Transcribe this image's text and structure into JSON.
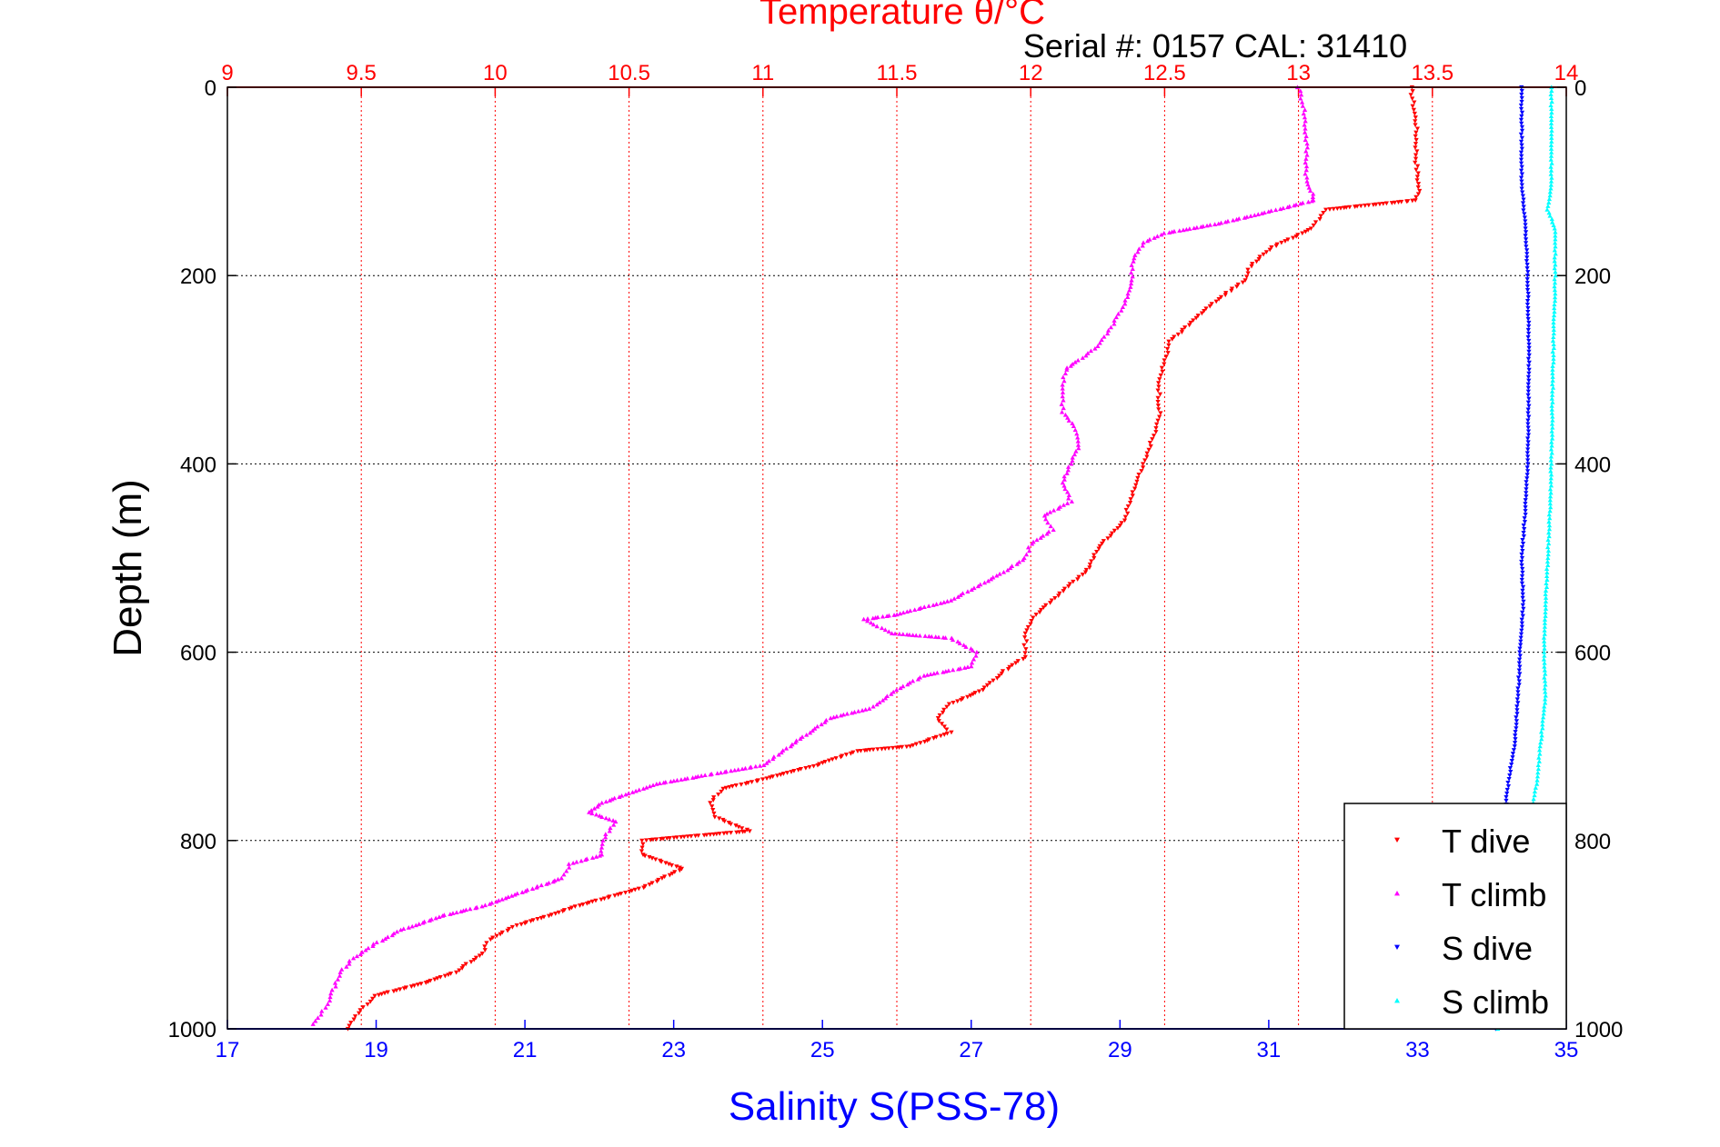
{
  "chart_data": {
    "type": "scatter",
    "title": "Temperature θ/°C",
    "subtitle": "Serial #: 0157  CAL: 31410",
    "ylabel": "Depth (m)",
    "xlabel": "Salinity S(PSS-78)",
    "ylim": [
      0,
      1000
    ],
    "y_reversed": true,
    "y_ticks": [
      0,
      200,
      400,
      600,
      800,
      1000
    ],
    "temp_axis": {
      "range": [
        9,
        14
      ],
      "ticks": [
        "9",
        "9.5",
        "10",
        "10.5",
        "11",
        "11.5",
        "12",
        "12.5",
        "13",
        "13.5",
        "14"
      ],
      "color": "#ff0000",
      "position": "top"
    },
    "sal_axis": {
      "range": [
        17,
        35
      ],
      "ticks": [
        "17",
        "19",
        "21",
        "23",
        "25",
        "27",
        "29",
        "31",
        "33",
        "35"
      ],
      "color": "#0000ff",
      "position": "bottom"
    },
    "grid": true,
    "legend_position": "bottom-right",
    "series": [
      {
        "name": "T dive",
        "axis": "temperature",
        "marker": "triangle-down",
        "color": "#ff0000",
        "points": [
          [
            13.42,
            0
          ],
          [
            13.44,
            40
          ],
          [
            13.44,
            80
          ],
          [
            13.45,
            110
          ],
          [
            13.44,
            120
          ],
          [
            13.1,
            130
          ],
          [
            13.05,
            150
          ],
          [
            12.9,
            170
          ],
          [
            12.82,
            190
          ],
          [
            12.8,
            205
          ],
          [
            12.7,
            225
          ],
          [
            12.6,
            250
          ],
          [
            12.52,
            270
          ],
          [
            12.5,
            290
          ],
          [
            12.48,
            310
          ],
          [
            12.48,
            330
          ],
          [
            12.48,
            350
          ],
          [
            12.46,
            370
          ],
          [
            12.42,
            400
          ],
          [
            12.38,
            430
          ],
          [
            12.35,
            460
          ],
          [
            12.25,
            490
          ],
          [
            12.22,
            510
          ],
          [
            12.1,
            540
          ],
          [
            12.02,
            560
          ],
          [
            11.98,
            580
          ],
          [
            11.98,
            605
          ],
          [
            11.9,
            620
          ],
          [
            11.82,
            640
          ],
          [
            11.7,
            655
          ],
          [
            11.65,
            670
          ],
          [
            11.7,
            685
          ],
          [
            11.55,
            700
          ],
          [
            11.35,
            705
          ],
          [
            11.2,
            720
          ],
          [
            11.0,
            735
          ],
          [
            10.85,
            745
          ],
          [
            10.8,
            760
          ],
          [
            10.82,
            775
          ],
          [
            10.95,
            790
          ],
          [
            10.55,
            800
          ],
          [
            10.55,
            815
          ],
          [
            10.7,
            830
          ],
          [
            10.55,
            850
          ],
          [
            10.3,
            870
          ],
          [
            10.2,
            880
          ],
          [
            10.08,
            890
          ],
          [
            9.98,
            905
          ],
          [
            9.95,
            920
          ],
          [
            9.85,
            940
          ],
          [
            9.75,
            950
          ],
          [
            9.55,
            965
          ],
          [
            9.5,
            980
          ],
          [
            9.47,
            990
          ],
          [
            9.45,
            1000
          ]
        ]
      },
      {
        "name": "T climb",
        "axis": "temperature",
        "marker": "triangle-up",
        "color": "#ff00ff",
        "points": [
          [
            13.0,
            0
          ],
          [
            13.02,
            20
          ],
          [
            13.03,
            60
          ],
          [
            13.03,
            100
          ],
          [
            13.06,
            120
          ],
          [
            12.85,
            135
          ],
          [
            12.7,
            145
          ],
          [
            12.5,
            155
          ],
          [
            12.42,
            165
          ],
          [
            12.38,
            185
          ],
          [
            12.38,
            205
          ],
          [
            12.35,
            230
          ],
          [
            12.3,
            255
          ],
          [
            12.25,
            275
          ],
          [
            12.18,
            290
          ],
          [
            12.13,
            300
          ],
          [
            12.12,
            320
          ],
          [
            12.12,
            345
          ],
          [
            12.16,
            360
          ],
          [
            12.18,
            380
          ],
          [
            12.15,
            400
          ],
          [
            12.12,
            420
          ],
          [
            12.15,
            440
          ],
          [
            12.05,
            455
          ],
          [
            12.08,
            470
          ],
          [
            12.0,
            485
          ],
          [
            11.98,
            500
          ],
          [
            11.9,
            515
          ],
          [
            11.8,
            530
          ],
          [
            11.7,
            545
          ],
          [
            11.5,
            560
          ],
          [
            11.38,
            565
          ],
          [
            11.48,
            580
          ],
          [
            11.7,
            585
          ],
          [
            11.8,
            600
          ],
          [
            11.78,
            615
          ],
          [
            11.6,
            625
          ],
          [
            11.5,
            640
          ],
          [
            11.4,
            660
          ],
          [
            11.25,
            670
          ],
          [
            11.15,
            690
          ],
          [
            11.1,
            700
          ],
          [
            11.0,
            720
          ],
          [
            10.8,
            730
          ],
          [
            10.6,
            740
          ],
          [
            10.5,
            750
          ],
          [
            10.4,
            760
          ],
          [
            10.35,
            770
          ],
          [
            10.45,
            780
          ],
          [
            10.4,
            800
          ],
          [
            10.4,
            815
          ],
          [
            10.28,
            825
          ],
          [
            10.25,
            840
          ],
          [
            10.1,
            855
          ],
          [
            9.95,
            870
          ],
          [
            9.8,
            880
          ],
          [
            9.65,
            895
          ],
          [
            9.55,
            910
          ],
          [
            9.47,
            925
          ],
          [
            9.42,
            940
          ],
          [
            9.4,
            955
          ],
          [
            9.38,
            970
          ],
          [
            9.35,
            985
          ],
          [
            9.32,
            995
          ]
        ]
      },
      {
        "name": "S dive",
        "axis": "salinity",
        "marker": "triangle-down",
        "color": "#0000ff",
        "points": [
          [
            34.4,
            0
          ],
          [
            34.4,
            100
          ],
          [
            34.45,
            150
          ],
          [
            34.48,
            200
          ],
          [
            34.5,
            300
          ],
          [
            34.48,
            400
          ],
          [
            34.45,
            450
          ],
          [
            34.4,
            500
          ],
          [
            34.42,
            550
          ],
          [
            34.38,
            600
          ],
          [
            34.35,
            650
          ],
          [
            34.3,
            700
          ],
          [
            34.2,
            750
          ],
          [
            34.15,
            800
          ],
          [
            34.12,
            850
          ],
          [
            34.1,
            900
          ],
          [
            34.05,
            950
          ],
          [
            34.05,
            1000
          ]
        ]
      },
      {
        "name": "S climb",
        "axis": "salinity",
        "marker": "triangle-up",
        "color": "#00ffff",
        "points": [
          [
            34.8,
            0
          ],
          [
            34.8,
            100
          ],
          [
            34.75,
            130
          ],
          [
            34.85,
            150
          ],
          [
            34.85,
            200
          ],
          [
            34.82,
            300
          ],
          [
            34.8,
            400
          ],
          [
            34.78,
            450
          ],
          [
            34.75,
            500
          ],
          [
            34.72,
            550
          ],
          [
            34.7,
            600
          ],
          [
            34.72,
            650
          ],
          [
            34.65,
            700
          ],
          [
            34.6,
            740
          ],
          [
            34.55,
            760
          ],
          [
            34.4,
            800
          ],
          [
            34.3,
            850
          ],
          [
            34.2,
            900
          ],
          [
            34.1,
            950
          ],
          [
            34.08,
            1000
          ]
        ]
      }
    ]
  }
}
